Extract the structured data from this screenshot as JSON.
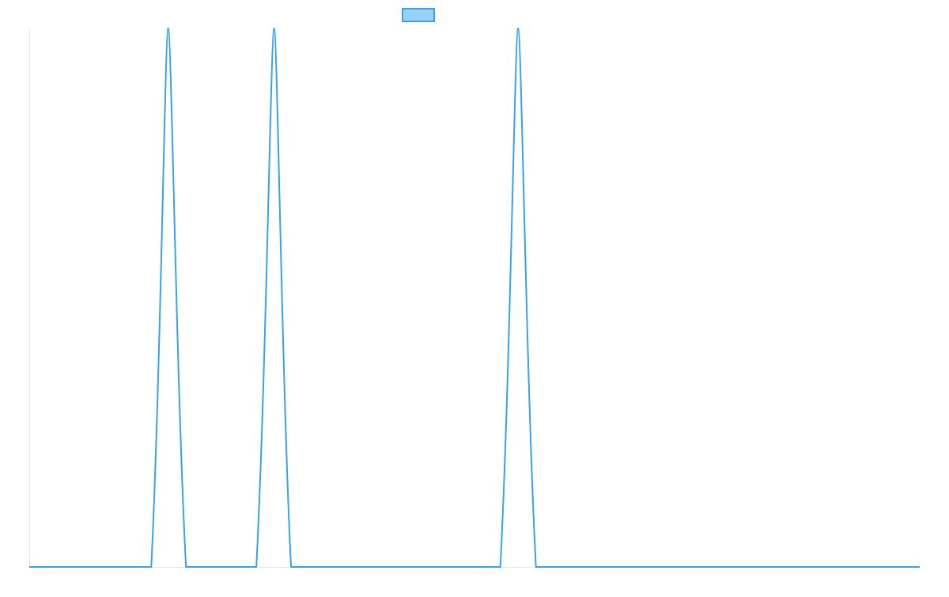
{
  "chart_data": {
    "type": "line",
    "title": "",
    "xlabel": "",
    "ylabel": "",
    "legend": {
      "placement": "top-center",
      "entries": [
        {
          "name": "",
          "color": "#36a2eb",
          "fill": "#9ad0f5"
        }
      ]
    },
    "grid": false,
    "xlim": [
      0,
      100
    ],
    "ylim": [
      0,
      1
    ],
    "series": [
      {
        "name": "",
        "color": "#36a2eb",
        "points": [
          {
            "x": 0,
            "y": 0
          },
          {
            "x": 13.7,
            "y": 0
          },
          {
            "x": 15.6,
            "y": 1
          },
          {
            "x": 17.6,
            "y": 0
          },
          {
            "x": 25.5,
            "y": 0
          },
          {
            "x": 27.5,
            "y": 1
          },
          {
            "x": 29.4,
            "y": 0
          },
          {
            "x": 52.9,
            "y": 0
          },
          {
            "x": 54.9,
            "y": 1
          },
          {
            "x": 56.9,
            "y": 0
          },
          {
            "x": 100,
            "y": 0
          }
        ]
      }
    ]
  }
}
